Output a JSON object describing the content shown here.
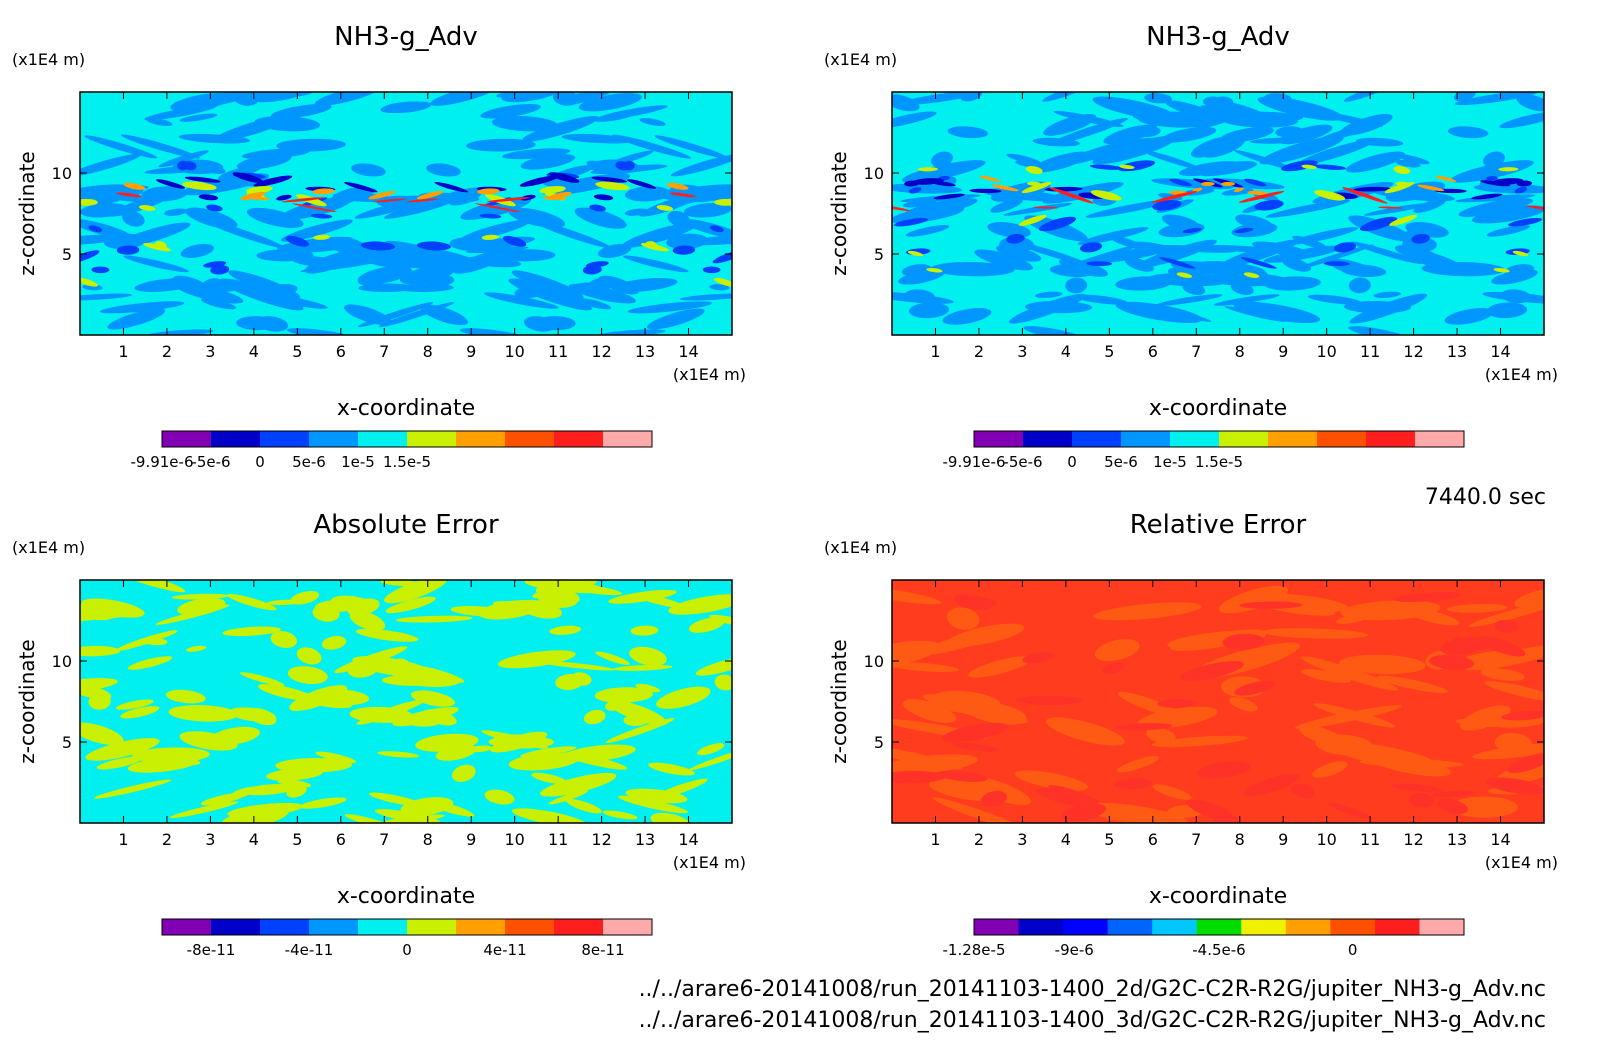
{
  "chart_data": [
    {
      "type": "heatmap",
      "title": "NH3-g_Adv",
      "xlabel": "x-coordinate",
      "ylabel": "z-coordinate",
      "x_unit": "(x1E4 m)",
      "y_unit": "(x1E4 m)",
      "xlim": [
        0,
        15
      ],
      "ylim": [
        0,
        15
      ],
      "x_ticks": [
        "1",
        "2",
        "3",
        "4",
        "5",
        "6",
        "7",
        "8",
        "9",
        "10",
        "11",
        "12",
        "13",
        "14"
      ],
      "y_ticks": [
        "5",
        "10"
      ],
      "base_color": "#00f0f0",
      "colorbar": {
        "colors": [
          "#8200b4",
          "#0000c8",
          "#0040ff",
          "#0096ff",
          "#00f0f0",
          "#c8f000",
          "#ffa000",
          "#ff5000",
          "#ff1e1e",
          "#ffaaaa"
        ],
        "labels": [
          "-9.91e-6",
          "-5e-6",
          "0",
          "5e-6",
          "1e-5",
          "1.5e-5"
        ],
        "label_positions": [
          0,
          1,
          2,
          3,
          4,
          5
        ]
      }
    },
    {
      "type": "heatmap",
      "title": "NH3-g_Adv",
      "xlabel": "x-coordinate",
      "ylabel": "z-coordinate",
      "x_unit": "(x1E4 m)",
      "y_unit": "(x1E4 m)",
      "xlim": [
        0,
        15
      ],
      "ylim": [
        0,
        15
      ],
      "x_ticks": [
        "1",
        "2",
        "3",
        "4",
        "5",
        "6",
        "7",
        "8",
        "9",
        "10",
        "11",
        "12",
        "13",
        "14"
      ],
      "y_ticks": [
        "5",
        "10"
      ],
      "base_color": "#00f0f0",
      "colorbar": {
        "colors": [
          "#8200b4",
          "#0000c8",
          "#0040ff",
          "#0096ff",
          "#00f0f0",
          "#c8f000",
          "#ffa000",
          "#ff5000",
          "#ff1e1e",
          "#ffaaaa"
        ],
        "labels": [
          "-9.91e-6",
          "-5e-6",
          "0",
          "5e-6",
          "1e-5",
          "1.5e-5"
        ],
        "label_positions": [
          0,
          1,
          2,
          3,
          4,
          5
        ]
      }
    },
    {
      "type": "heatmap",
      "title": "Absolute Error",
      "xlabel": "x-coordinate",
      "ylabel": "z-coordinate",
      "x_unit": "(x1E4 m)",
      "y_unit": "(x1E4 m)",
      "xlim": [
        0,
        15
      ],
      "ylim": [
        0,
        15
      ],
      "x_ticks": [
        "1",
        "2",
        "3",
        "4",
        "5",
        "6",
        "7",
        "8",
        "9",
        "10",
        "11",
        "12",
        "13",
        "14"
      ],
      "y_ticks": [
        "5",
        "10"
      ],
      "base_color": "#00f0f0",
      "colorbar": {
        "colors": [
          "#8200b4",
          "#0000c8",
          "#0040ff",
          "#0096ff",
          "#00f0f0",
          "#c8f000",
          "#ffa000",
          "#ff5000",
          "#ff1e1e",
          "#ffaaaa"
        ],
        "labels": [
          "-8e-11",
          "-4e-11",
          "0",
          "4e-11",
          "8e-11"
        ],
        "label_positions": [
          1,
          3,
          5,
          7,
          9
        ]
      }
    },
    {
      "type": "heatmap",
      "title": "Relative Error",
      "xlabel": "x-coordinate",
      "ylabel": "z-coordinate",
      "x_unit": "(x1E4 m)",
      "y_unit": "(x1E4 m)",
      "xlim": [
        0,
        15
      ],
      "ylim": [
        0,
        15
      ],
      "x_ticks": [
        "1",
        "2",
        "3",
        "4",
        "5",
        "6",
        "7",
        "8",
        "9",
        "10",
        "11",
        "12",
        "13",
        "14"
      ],
      "y_ticks": [
        "5",
        "10"
      ],
      "base_color": "#ff3c1e",
      "colorbar": {
        "colors": [
          "#8200b4",
          "#0000c8",
          "#0000ff",
          "#0064ff",
          "#00c8ff",
          "#00dc00",
          "#f0f000",
          "#ffa000",
          "#ff5000",
          "#ff1e1e",
          "#ffaaaa"
        ],
        "labels": [
          "-1.28e-5",
          "-9e-6",
          "-4.5e-6",
          "0"
        ],
        "label_positions": [
          0,
          2.25,
          5.5,
          8.5
        ]
      }
    }
  ],
  "time_label": "7440.0 sec",
  "file_paths": [
    "../../arare6-20141008/run_20141103-1400_2d/G2C-C2R-R2G/jupiter_NH3-g_Adv.nc",
    "../../arare6-20141008/run_20141103-1400_3d/G2C-C2R-R2G/jupiter_NH3-g_Adv.nc"
  ]
}
